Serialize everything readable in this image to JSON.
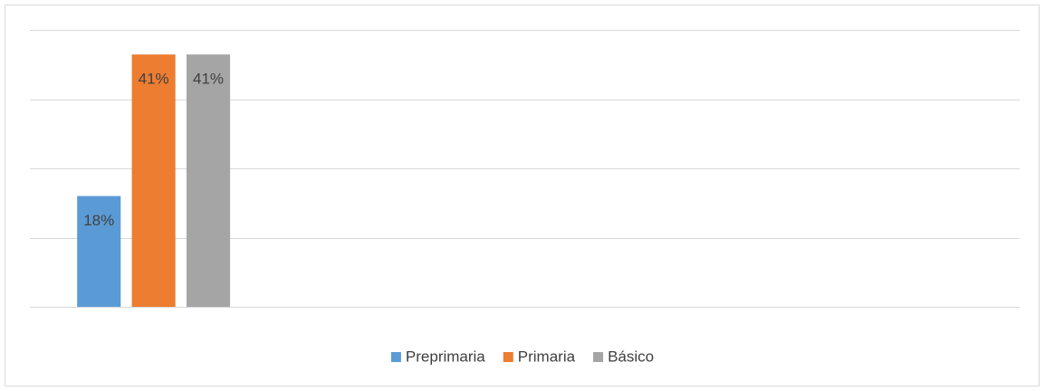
{
  "chart_data": {
    "type": "bar",
    "categories": [
      null,
      null,
      null,
      null
    ],
    "series": [
      {
        "name": "Preprimaria",
        "color": "#5b9bd5",
        "values": [
          18,
          null,
          null,
          null
        ],
        "value_labels": [
          "18%",
          null,
          null,
          null
        ]
      },
      {
        "name": "Primaria",
        "color": "#ed7d31",
        "values": [
          41,
          null,
          null,
          null
        ],
        "value_labels": [
          "41%",
          null,
          null,
          null
        ]
      },
      {
        "name": "Básico",
        "color": "#a5a5a5",
        "values": [
          41,
          null,
          null,
          null
        ],
        "value_labels": [
          "41%",
          null,
          null,
          null
        ]
      }
    ],
    "ylim": [
      0,
      45
    ],
    "yticks": [
      0,
      11.25,
      22.5,
      33.75,
      45
    ],
    "grid": true,
    "legend": "bottom"
  }
}
